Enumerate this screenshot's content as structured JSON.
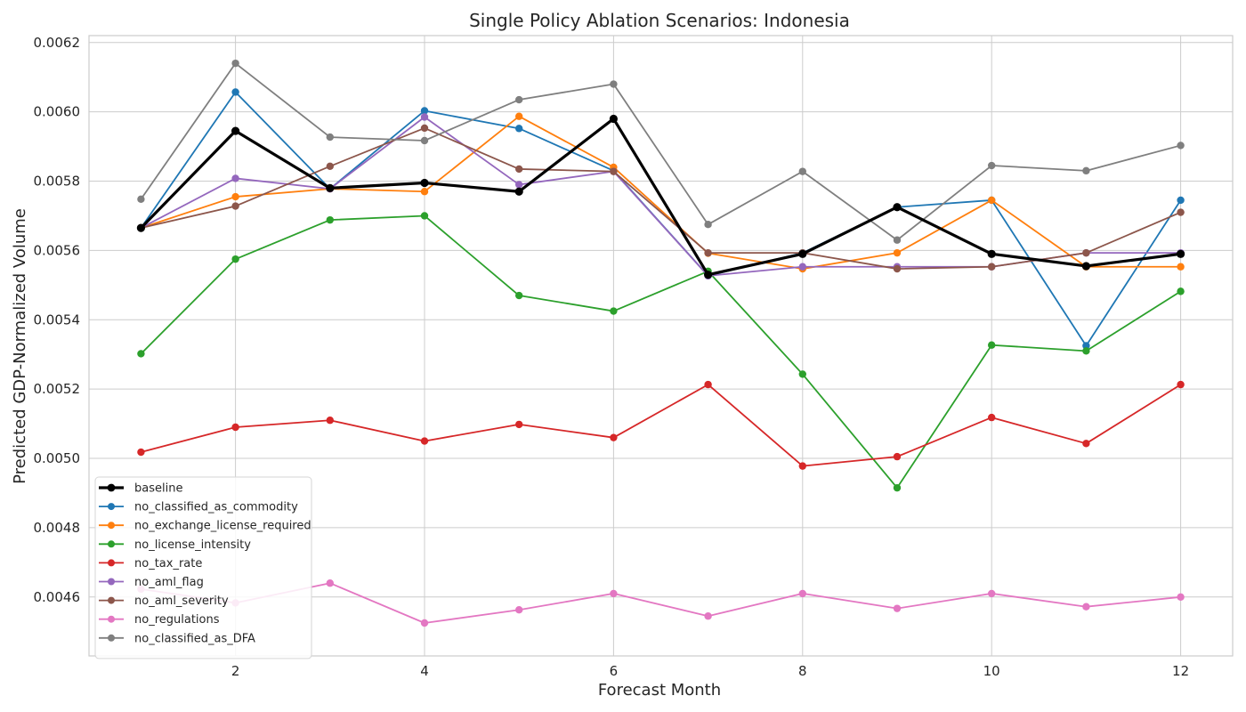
{
  "chart_data": {
    "type": "line",
    "title": "Single Policy Ablation Scenarios: Indonesia",
    "xlabel": "Forecast Month",
    "ylabel": "Predicted GDP-Normalized Volume",
    "xlim": [
      0.45,
      12.55
    ],
    "ylim": [
      0.00443,
      0.00622
    ],
    "x_ticks": [
      2,
      4,
      6,
      8,
      10,
      12
    ],
    "y_ticks": [
      0.0046,
      0.0048,
      0.005,
      0.0052,
      0.0054,
      0.0056,
      0.0058,
      0.006,
      0.0062
    ],
    "y_tick_labels": [
      "0.0046",
      "0.0048",
      "0.0050",
      "0.0052",
      "0.0054",
      "0.0056",
      "0.0058",
      "0.0060",
      "0.0062"
    ],
    "grid": true,
    "legend_position": "bottom-left",
    "x": [
      1,
      2,
      3,
      4,
      5,
      6,
      7,
      8,
      9,
      10,
      11,
      12
    ],
    "series": [
      {
        "name": "baseline",
        "color": "#000000",
        "bold": true,
        "values": [
          0.005665,
          0.005945,
          0.00578,
          0.005795,
          0.00577,
          0.00598,
          0.00553,
          0.00559,
          0.005725,
          0.00559,
          0.005555,
          0.00559
        ]
      },
      {
        "name": "no_classified_as_commodity",
        "color": "#1f77b4",
        "values": [
          0.005665,
          0.006057,
          0.005778,
          0.006003,
          0.005952,
          0.00583,
          0.005527,
          0.005593,
          0.005725,
          0.005745,
          0.005325,
          0.005745
        ]
      },
      {
        "name": "no_exchange_license_required",
        "color": "#ff7f0e",
        "values": [
          0.005665,
          0.005755,
          0.005778,
          0.00577,
          0.005987,
          0.00584,
          0.005592,
          0.005547,
          0.005593,
          0.005745,
          0.005553,
          0.005553
        ]
      },
      {
        "name": "no_license_intensity",
        "color": "#2ca02c",
        "values": [
          0.005302,
          0.005575,
          0.005688,
          0.0057,
          0.00547,
          0.005425,
          0.00554,
          0.005243,
          0.004915,
          0.005327,
          0.00531,
          0.005482
        ]
      },
      {
        "name": "no_tax_rate",
        "color": "#d62728",
        "values": [
          0.005018,
          0.00509,
          0.00511,
          0.00505,
          0.005098,
          0.00506,
          0.005213,
          0.004978,
          0.005005,
          0.005118,
          0.005043,
          0.005213
        ]
      },
      {
        "name": "no_aml_flag",
        "color": "#9467bd",
        "values": [
          0.005665,
          0.005808,
          0.005778,
          0.005985,
          0.00579,
          0.005828,
          0.005527,
          0.005553,
          0.005553,
          0.005553,
          0.005593,
          0.005593
        ]
      },
      {
        "name": "no_aml_severity",
        "color": "#8c564b",
        "values": [
          0.005665,
          0.005728,
          0.005843,
          0.005953,
          0.005835,
          0.005828,
          0.005593,
          0.005593,
          0.005547,
          0.005553,
          0.005593,
          0.00571
        ]
      },
      {
        "name": "no_regulations",
        "color": "#e377c2",
        "values": [
          0.004623,
          0.004583,
          0.00464,
          0.004525,
          0.004563,
          0.00461,
          0.004545,
          0.00461,
          0.004567,
          0.00461,
          0.004572,
          0.0046
        ]
      },
      {
        "name": "no_classified_as_DFA",
        "color": "#7f7f7f",
        "values": [
          0.005748,
          0.00614,
          0.005927,
          0.005917,
          0.006035,
          0.00608,
          0.005675,
          0.005828,
          0.00563,
          0.005845,
          0.00583,
          0.005903
        ]
      }
    ]
  }
}
